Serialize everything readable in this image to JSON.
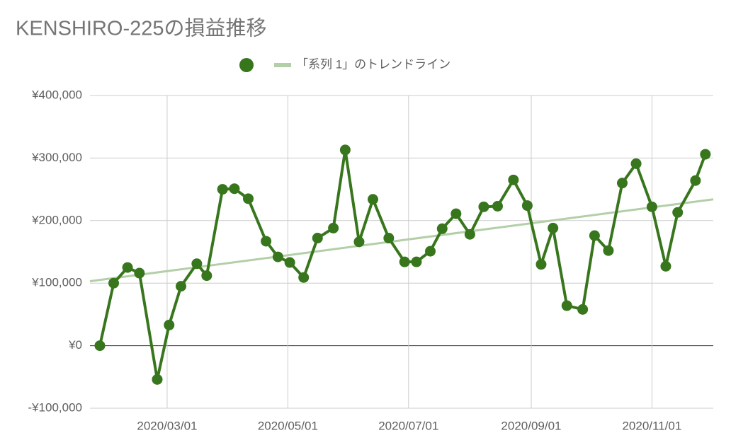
{
  "chart_data": {
    "type": "line",
    "title": "KENSHIRO-225の損益推移",
    "x": [
      "2020-01-27",
      "2020-02-03",
      "2020-02-10",
      "2020-02-16",
      "2020-02-25",
      "2020-03-02",
      "2020-03-08",
      "2020-03-16",
      "2020-03-21",
      "2020-03-29",
      "2020-04-04",
      "2020-04-11",
      "2020-04-20",
      "2020-04-26",
      "2020-05-02",
      "2020-05-09",
      "2020-05-16",
      "2020-05-24",
      "2020-05-30",
      "2020-06-06",
      "2020-06-13",
      "2020-06-21",
      "2020-06-29",
      "2020-07-05",
      "2020-07-12",
      "2020-07-18",
      "2020-07-25",
      "2020-08-01",
      "2020-08-08",
      "2020-08-15",
      "2020-08-23",
      "2020-08-30",
      "2020-09-06",
      "2020-09-12",
      "2020-09-19",
      "2020-09-27",
      "2020-10-03",
      "2020-10-10",
      "2020-10-17",
      "2020-10-24",
      "2020-11-01",
      "2020-11-08",
      "2020-11-14",
      "2020-11-23",
      "2020-11-28"
    ],
    "series": [
      {
        "color": "#38761d",
        "values": [
          0,
          100000,
          125000,
          116000,
          -54000,
          33000,
          95000,
          131000,
          112000,
          250000,
          251000,
          235000,
          167000,
          142000,
          133000,
          109000,
          172000,
          188000,
          313000,
          166000,
          234000,
          172000,
          134000,
          134000,
          151000,
          187000,
          211000,
          178000,
          222000,
          223000,
          265000,
          224000,
          130000,
          188000,
          64000,
          58000,
          176000,
          152000,
          260000,
          291000,
          222000,
          127000,
          213000,
          264000,
          306000
        ]
      }
    ],
    "trendline": {
      "name": "「系列 1」のトレンドライン",
      "color": "#b3cfa7",
      "values": [
        103000,
        234000
      ]
    },
    "xlim": [
      "2020-01-22",
      "2020-12-02"
    ],
    "xticks": [
      {
        "value": "2020-03-01",
        "label": "2020/03/01"
      },
      {
        "value": "2020-05-01",
        "label": "2020/05/01"
      },
      {
        "value": "2020-07-01",
        "label": "2020/07/01"
      },
      {
        "value": "2020-09-01",
        "label": "2020/09/01"
      },
      {
        "value": "2020-11-01",
        "label": "2020/11/01"
      }
    ],
    "ylim": [
      -100000,
      400000
    ],
    "yticks": [
      {
        "value": -100000,
        "label": "-¥100,000"
      },
      {
        "value": 0,
        "label": "¥0"
      },
      {
        "value": 100000,
        "label": "¥100,000"
      },
      {
        "value": 200000,
        "label": "¥200,000"
      },
      {
        "value": 300000,
        "label": "¥300,000"
      },
      {
        "value": 400000,
        "label": "¥400,000"
      }
    ],
    "grid": true
  }
}
